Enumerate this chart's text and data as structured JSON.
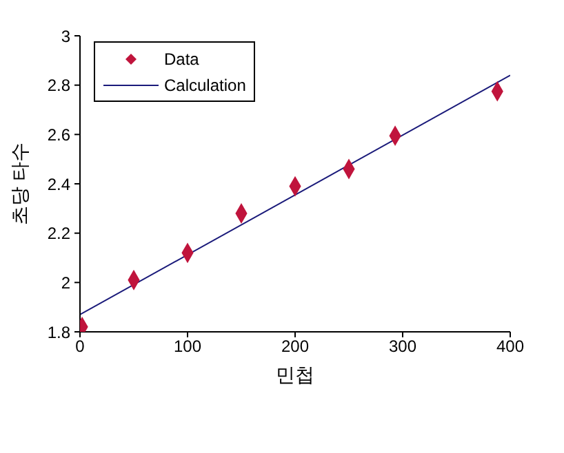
{
  "chart_data": {
    "type": "scatter",
    "xlabel": "민첩",
    "ylabel": "초당 타수",
    "xlim": [
      0,
      400
    ],
    "xticks": [
      0,
      100,
      200,
      300,
      400
    ],
    "ylim": [
      1.8,
      3
    ],
    "yticks": [
      1.8,
      2,
      2.2,
      2.4,
      2.6,
      2.8,
      3
    ],
    "grid": false,
    "legend": "top left",
    "marker": "diamond",
    "series": [
      {
        "name": "Data",
        "color": "#c0143c",
        "x": [
          2,
          50,
          100,
          150,
          200,
          250,
          293,
          388
        ],
        "values": [
          1.82,
          2.01,
          2.12,
          2.28,
          2.39,
          2.46,
          2.595,
          2.775
        ]
      },
      {
        "name": "Calculation",
        "type": "line",
        "color": "#1a1a7a",
        "line_style": "solid",
        "marker": "none",
        "x": [
          0,
          400
        ],
        "values": [
          1.87,
          2.84
        ]
      }
    ]
  }
}
